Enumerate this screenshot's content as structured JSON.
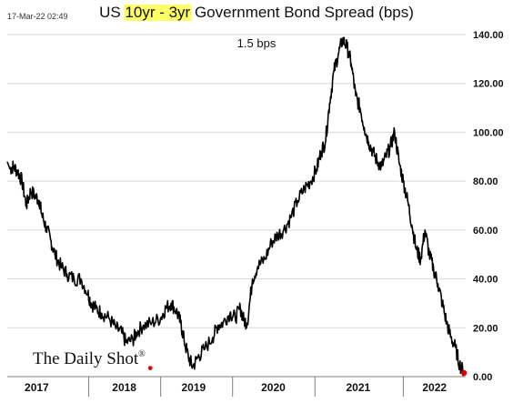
{
  "timestamp": "17-Mar-22 02:49",
  "title": {
    "prefix": "US ",
    "highlight": "10yr - 3yr",
    "suffix": " Government Bond Spread (bps)",
    "highlight_color": "#ffff66"
  },
  "annotation": "1.5 bps",
  "watermark": "The Daily Shot",
  "watermark_mark": "®",
  "colors": {
    "line": "#000000",
    "grid": "#d9d9d9",
    "marker": "#e00000"
  },
  "chart_data": {
    "type": "line",
    "title": "US 10yr - 3yr Government Bond Spread (bps)",
    "xlabel": "",
    "ylabel": "",
    "xlim": [
      2016.93,
      2022.22
    ],
    "ylim": [
      0,
      140
    ],
    "y_ticks": [
      0,
      20,
      40,
      60,
      80,
      100,
      120,
      140
    ],
    "y_tick_labels": [
      "0.00",
      "20.00",
      "40.00",
      "60.00",
      "80.00",
      "100.00",
      "120.00",
      "140.00"
    ],
    "y_axis_side": "right",
    "grid": "horizontal",
    "x_year_dividers": [
      2017.87,
      2018.7,
      2019.53,
      2020.48,
      2021.5
    ],
    "x_tick_labels": [
      {
        "label": "2017",
        "x": 2017.27
      },
      {
        "label": "2018",
        "x": 2018.28
      },
      {
        "label": "2019",
        "x": 2019.08
      },
      {
        "label": "2020",
        "x": 2020.0
      },
      {
        "label": "2021",
        "x": 2020.98
      },
      {
        "label": "2022",
        "x": 2021.86
      }
    ],
    "series": [
      {
        "x": [
          2016.93,
          2016.96,
          2017.0,
          2017.05,
          2017.1,
          2017.15,
          2017.2,
          2017.25,
          2017.3,
          2017.33,
          2017.38,
          2017.43,
          2017.48,
          2017.55,
          2017.62,
          2017.7,
          2017.78,
          2017.86,
          2017.9,
          2017.95,
          2018.02,
          2018.1,
          2018.18,
          2018.25,
          2018.3,
          2018.38,
          2018.42,
          2018.5,
          2018.6,
          2018.7,
          2018.76,
          2018.82,
          2018.88,
          2018.93,
          2018.97,
          2019.02,
          2019.07,
          2019.13,
          2019.2,
          2019.3,
          2019.36,
          2019.42,
          2019.5,
          2019.56,
          2019.62,
          2019.66,
          2019.7,
          2019.76,
          2019.82,
          2019.9,
          2019.98,
          2020.05,
          2020.12,
          2020.2,
          2020.28,
          2020.36,
          2020.43,
          2020.5,
          2020.55,
          2020.6,
          2020.65,
          2020.7,
          2020.75,
          2020.8,
          2020.85,
          2020.9,
          2020.95,
          2021.0,
          2021.05,
          2021.1,
          2021.15,
          2021.2,
          2021.25,
          2021.3,
          2021.35,
          2021.4,
          2021.45,
          2021.5,
          2021.55,
          2021.6,
          2021.65,
          2021.7,
          2021.75,
          2021.8,
          2021.85,
          2021.9,
          2021.95,
          2022.0,
          2022.05,
          2022.1,
          2022.15,
          2022.2
        ],
        "values": [
          88,
          85,
          86,
          84,
          80,
          70,
          76,
          74,
          72,
          66,
          61,
          56,
          50,
          45,
          42,
          40,
          40,
          34,
          30,
          28,
          26,
          24,
          20,
          18,
          14,
          15,
          18,
          21,
          22,
          24,
          28,
          30,
          27,
          22,
          15,
          8,
          4,
          8,
          11,
          16,
          21,
          22,
          26,
          24,
          28,
          23,
          22,
          40,
          45,
          48,
          55,
          58,
          60,
          65,
          72,
          77,
          80,
          85,
          92,
          96,
          112,
          125,
          132,
          138,
          135,
          128,
          115,
          110,
          102,
          96,
          92,
          88,
          86,
          90,
          94,
          100,
          88,
          80,
          72,
          62,
          52,
          48,
          60,
          50,
          44,
          38,
          30,
          22,
          16,
          12,
          5,
          1.5
        ]
      }
    ],
    "last_point_marker": {
      "x": 2022.2,
      "y": 1.5
    },
    "reference_marker": {
      "x": 2018.58,
      "y": 3.5
    }
  }
}
